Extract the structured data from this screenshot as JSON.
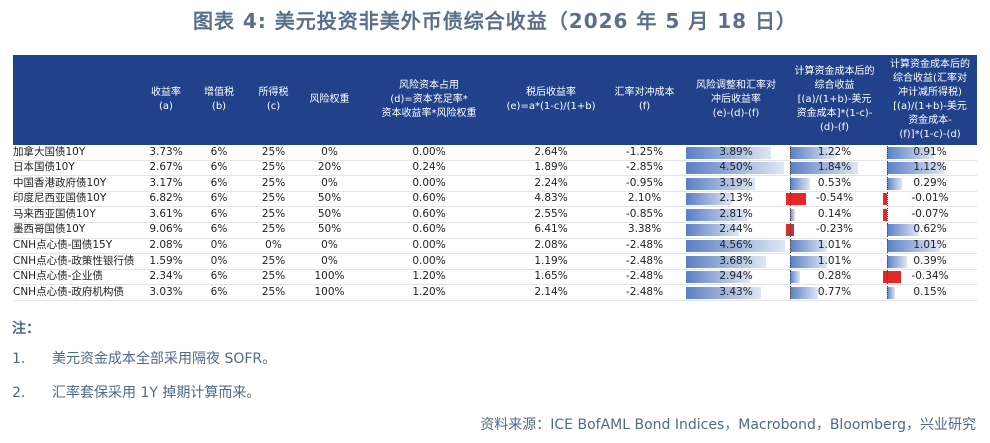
{
  "title": "图表 4: 美元投资非美外币债综合收益（2026 年 5 月 18 日）",
  "headers": [
    "",
    "收益率\n(a)",
    "增值税\n(b)",
    "所得税\n(c)",
    "风险权重",
    "风险资本占用\n(d)=资本充足率*\n资本收益率*风险权重",
    "税后收益率\n(e)=a*(1-c)/(1+b)",
    "汇率对冲成本\n(f)",
    "风险调整和汇率对\n冲后收益率\n(e)-(d)-(f)",
    "计算资金成本后的\n综合收益\n[(a)/(1+b)-美元\n资金成本]*(1-c)-\n(d)-(f)",
    "计算资金成本后的\n综合收益(汇率对\n冲计减所得税)\n[(a)/(1+b)-美元\n资金成本-\n(f)]*(1-c)-(d)"
  ],
  "rows": [
    {
      "name": "加拿大国债10Y",
      "a": "3.73%",
      "b": "6%",
      "c": "25%",
      "w": "0%",
      "d": "0.00%",
      "e": "2.64%",
      "f": "-1.25%",
      "g": "3.89%",
      "h": "1.22%",
      "i": "0.91%",
      "gv": 3.89,
      "hv": 1.22,
      "iv": 0.91
    },
    {
      "name": "日本国债10Y",
      "a": "2.67%",
      "b": "6%",
      "c": "25%",
      "w": "20%",
      "d": "0.24%",
      "e": "1.89%",
      "f": "-2.85%",
      "g": "4.50%",
      "h": "1.84%",
      "i": "1.12%",
      "gv": 4.5,
      "hv": 1.84,
      "iv": 1.12
    },
    {
      "name": "中国香港政府债10Y",
      "a": "3.17%",
      "b": "6%",
      "c": "25%",
      "w": "0%",
      "d": "0.00%",
      "e": "2.24%",
      "f": "-0.95%",
      "g": "3.19%",
      "h": "0.53%",
      "i": "0.29%",
      "gv": 3.19,
      "hv": 0.53,
      "iv": 0.29
    },
    {
      "name": "印度尼西亚国债10Y",
      "a": "6.82%",
      "b": "6%",
      "c": "25%",
      "w": "50%",
      "d": "0.60%",
      "e": "4.83%",
      "f": "2.10%",
      "g": "2.13%",
      "h": "-0.54%",
      "i": "-0.01%",
      "gv": 2.13,
      "hv": -0.54,
      "iv": -0.01
    },
    {
      "name": "马来西亚国债10Y",
      "a": "3.61%",
      "b": "6%",
      "c": "25%",
      "w": "50%",
      "d": "0.60%",
      "e": "2.55%",
      "f": "-0.85%",
      "g": "2.81%",
      "h": "0.14%",
      "i": "-0.07%",
      "gv": 2.81,
      "hv": 0.14,
      "iv": -0.07
    },
    {
      "name": "墨西哥国债10Y",
      "a": "9.06%",
      "b": "6%",
      "c": "25%",
      "w": "50%",
      "d": "0.60%",
      "e": "6.41%",
      "f": "3.38%",
      "g": "2.44%",
      "h": "-0.23%",
      "i": "0.62%",
      "gv": 2.44,
      "hv": -0.23,
      "iv": 0.62
    },
    {
      "name": "CNH点心债-国债15Y",
      "a": "2.08%",
      "b": "0%",
      "c": "0%",
      "w": "0%",
      "d": "0.00%",
      "e": "2.08%",
      "f": "-2.48%",
      "g": "4.56%",
      "h": "1.01%",
      "i": "1.01%",
      "gv": 4.56,
      "hv": 1.01,
      "iv": 1.01
    },
    {
      "name": "CNH点心债-政策性银行债",
      "a": "1.59%",
      "b": "0%",
      "c": "25%",
      "w": "0%",
      "d": "0.00%",
      "e": "1.19%",
      "f": "-2.48%",
      "g": "3.68%",
      "h": "1.01%",
      "i": "0.39%",
      "gv": 3.68,
      "hv": 1.01,
      "iv": 0.39
    },
    {
      "name": "CNH点心债-企业债",
      "a": "2.34%",
      "b": "6%",
      "c": "25%",
      "w": "100%",
      "d": "1.20%",
      "e": "1.65%",
      "f": "-2.48%",
      "g": "2.94%",
      "h": "0.28%",
      "i": "-0.34%",
      "gv": 2.94,
      "hv": 0.28,
      "iv": -0.34
    },
    {
      "name": "CNH点心债-政府机构债",
      "a": "3.03%",
      "b": "6%",
      "c": "25%",
      "w": "100%",
      "d": "1.20%",
      "e": "2.14%",
      "f": "-2.48%",
      "g": "3.43%",
      "h": "0.77%",
      "i": "0.15%",
      "gv": 3.43,
      "hv": 0.77,
      "iv": 0.15
    }
  ],
  "notes_title": "注：",
  "notes": [
    {
      "num": "1.",
      "text": "美元资金成本全部采用隔夜 SOFR。"
    },
    {
      "num": "2.",
      "text": "汇率套保采用 1Y 掉期计算而来。"
    }
  ],
  "source": "资料来源：ICE BofAML Bond Indices，Macrobond，Bloomberg，兴业研究",
  "colors": {
    "header_bg": "#21428a",
    "bar_pos": "#5b7fc4",
    "bar_neg": "#e1292a",
    "note_text": "#4f6a87"
  }
}
